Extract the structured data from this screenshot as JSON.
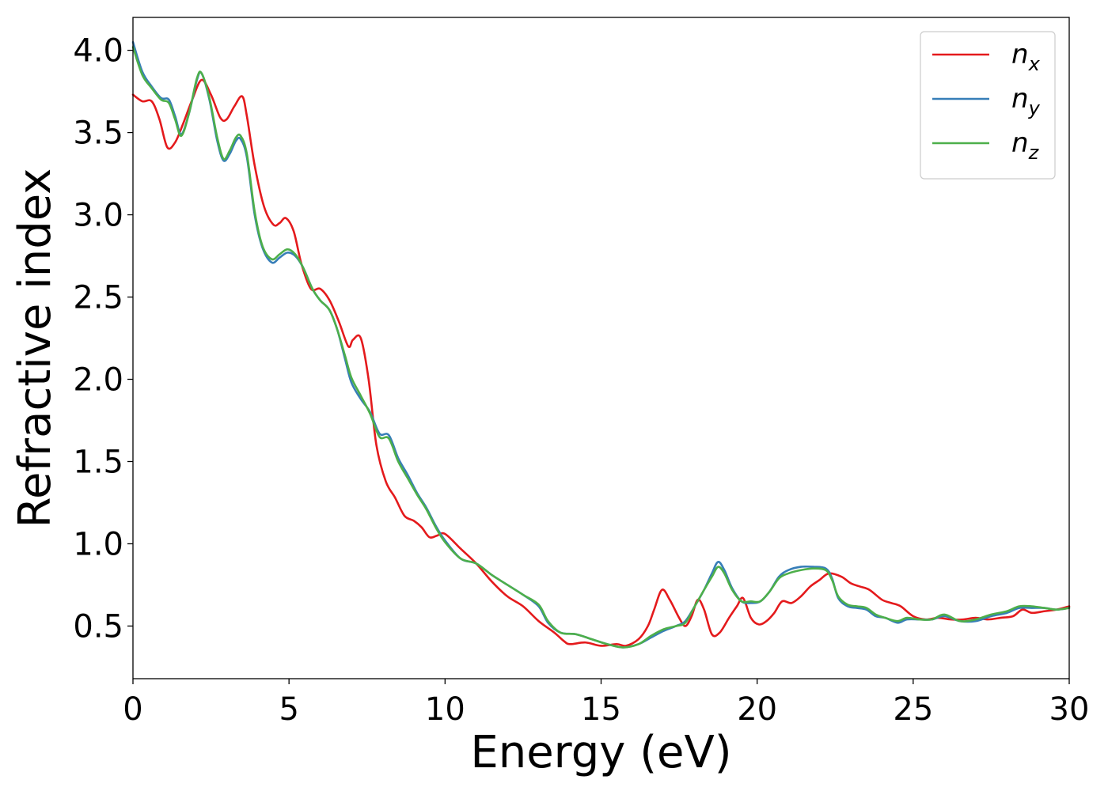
{
  "chart_data": {
    "type": "line",
    "title": "",
    "xlabel": "Energy (eV)",
    "ylabel": "Refractive index",
    "xlim": [
      0,
      30
    ],
    "ylim": [
      0.18,
      4.2
    ],
    "xticks": [
      0,
      5,
      10,
      15,
      20,
      25,
      30
    ],
    "xtick_labels": [
      "0",
      "5",
      "10",
      "15",
      "20",
      "25",
      "30"
    ],
    "yticks": [
      0.5,
      1.0,
      1.5,
      2.0,
      2.5,
      3.0,
      3.5,
      4.0
    ],
    "ytick_labels": [
      "0.5",
      "1.0",
      "1.5",
      "2.0",
      "2.5",
      "3.0",
      "3.5",
      "4.0"
    ],
    "grid": false,
    "legend_position": "top-right",
    "series": [
      {
        "name": "n_x",
        "legend_base": "n",
        "legend_sub": "x",
        "color": "#e41a1c",
        "points": [
          [
            0,
            3.73
          ],
          [
            0.3,
            3.69
          ],
          [
            0.6,
            3.69
          ],
          [
            0.85,
            3.58
          ],
          [
            1.1,
            3.41
          ],
          [
            1.35,
            3.44
          ],
          [
            1.6,
            3.55
          ],
          [
            1.9,
            3.7
          ],
          [
            2.2,
            3.82
          ],
          [
            2.5,
            3.73
          ],
          [
            2.8,
            3.59
          ],
          [
            3.0,
            3.58
          ],
          [
            3.25,
            3.66
          ],
          [
            3.5,
            3.72
          ],
          [
            3.65,
            3.6
          ],
          [
            3.9,
            3.3
          ],
          [
            4.2,
            3.05
          ],
          [
            4.5,
            2.94
          ],
          [
            4.7,
            2.95
          ],
          [
            4.9,
            2.98
          ],
          [
            5.15,
            2.9
          ],
          [
            5.4,
            2.7
          ],
          [
            5.7,
            2.55
          ],
          [
            6.0,
            2.55
          ],
          [
            6.3,
            2.48
          ],
          [
            6.6,
            2.35
          ],
          [
            6.9,
            2.2
          ],
          [
            7.05,
            2.24
          ],
          [
            7.3,
            2.25
          ],
          [
            7.55,
            2.0
          ],
          [
            7.8,
            1.6
          ],
          [
            8.1,
            1.38
          ],
          [
            8.4,
            1.28
          ],
          [
            8.7,
            1.17
          ],
          [
            9.0,
            1.14
          ],
          [
            9.25,
            1.1
          ],
          [
            9.5,
            1.04
          ],
          [
            9.75,
            1.05
          ],
          [
            10.0,
            1.06
          ],
          [
            10.5,
            0.97
          ],
          [
            11.0,
            0.88
          ],
          [
            11.5,
            0.77
          ],
          [
            12.0,
            0.68
          ],
          [
            12.5,
            0.62
          ],
          [
            13.0,
            0.53
          ],
          [
            13.5,
            0.46
          ],
          [
            13.8,
            0.41
          ],
          [
            14.0,
            0.39
          ],
          [
            14.5,
            0.4
          ],
          [
            15.0,
            0.38
          ],
          [
            15.5,
            0.39
          ],
          [
            15.8,
            0.38
          ],
          [
            16.2,
            0.42
          ],
          [
            16.5,
            0.5
          ],
          [
            16.7,
            0.6
          ],
          [
            16.95,
            0.72
          ],
          [
            17.2,
            0.66
          ],
          [
            17.5,
            0.55
          ],
          [
            17.7,
            0.5
          ],
          [
            17.9,
            0.56
          ],
          [
            18.1,
            0.66
          ],
          [
            18.3,
            0.6
          ],
          [
            18.55,
            0.45
          ],
          [
            18.8,
            0.46
          ],
          [
            19.1,
            0.55
          ],
          [
            19.35,
            0.62
          ],
          [
            19.55,
            0.67
          ],
          [
            19.8,
            0.55
          ],
          [
            20.05,
            0.51
          ],
          [
            20.3,
            0.53
          ],
          [
            20.55,
            0.58
          ],
          [
            20.8,
            0.65
          ],
          [
            21.1,
            0.64
          ],
          [
            21.4,
            0.68
          ],
          [
            21.7,
            0.74
          ],
          [
            22.0,
            0.78
          ],
          [
            22.3,
            0.82
          ],
          [
            22.7,
            0.8
          ],
          [
            23.0,
            0.76
          ],
          [
            23.3,
            0.74
          ],
          [
            23.6,
            0.72
          ],
          [
            24.0,
            0.66
          ],
          [
            24.3,
            0.64
          ],
          [
            24.6,
            0.62
          ],
          [
            25.0,
            0.56
          ],
          [
            25.4,
            0.54
          ],
          [
            25.8,
            0.55
          ],
          [
            26.2,
            0.54
          ],
          [
            26.6,
            0.54
          ],
          [
            27.0,
            0.55
          ],
          [
            27.4,
            0.54
          ],
          [
            27.8,
            0.55
          ],
          [
            28.2,
            0.56
          ],
          [
            28.5,
            0.6
          ],
          [
            28.8,
            0.58
          ],
          [
            29.2,
            0.59
          ],
          [
            29.6,
            0.6
          ],
          [
            30.0,
            0.62
          ]
        ]
      },
      {
        "name": "n_y",
        "legend_base": "n",
        "legend_sub": "y",
        "color": "#377eb8",
        "points": [
          [
            0,
            4.05
          ],
          [
            0.3,
            3.87
          ],
          [
            0.6,
            3.78
          ],
          [
            0.9,
            3.71
          ],
          [
            1.15,
            3.7
          ],
          [
            1.35,
            3.6
          ],
          [
            1.55,
            3.49
          ],
          [
            1.8,
            3.62
          ],
          [
            2.05,
            3.82
          ],
          [
            2.2,
            3.86
          ],
          [
            2.45,
            3.7
          ],
          [
            2.7,
            3.45
          ],
          [
            2.9,
            3.33
          ],
          [
            3.1,
            3.37
          ],
          [
            3.3,
            3.45
          ],
          [
            3.45,
            3.46
          ],
          [
            3.65,
            3.35
          ],
          [
            3.9,
            3.0
          ],
          [
            4.15,
            2.8
          ],
          [
            4.45,
            2.71
          ],
          [
            4.7,
            2.74
          ],
          [
            4.95,
            2.77
          ],
          [
            5.2,
            2.75
          ],
          [
            5.45,
            2.68
          ],
          [
            5.75,
            2.55
          ],
          [
            6.0,
            2.48
          ],
          [
            6.3,
            2.42
          ],
          [
            6.55,
            2.3
          ],
          [
            6.8,
            2.12
          ],
          [
            7.0,
            1.98
          ],
          [
            7.3,
            1.88
          ],
          [
            7.6,
            1.8
          ],
          [
            7.9,
            1.67
          ],
          [
            8.2,
            1.66
          ],
          [
            8.5,
            1.52
          ],
          [
            8.8,
            1.42
          ],
          [
            9.1,
            1.31
          ],
          [
            9.4,
            1.22
          ],
          [
            9.7,
            1.11
          ],
          [
            10.0,
            1.02
          ],
          [
            10.5,
            0.91
          ],
          [
            11.0,
            0.88
          ],
          [
            11.5,
            0.81
          ],
          [
            12.0,
            0.75
          ],
          [
            12.5,
            0.69
          ],
          [
            13.0,
            0.62
          ],
          [
            13.3,
            0.52
          ],
          [
            13.7,
            0.46
          ],
          [
            14.2,
            0.45
          ],
          [
            14.7,
            0.42
          ],
          [
            15.2,
            0.39
          ],
          [
            15.7,
            0.37
          ],
          [
            16.2,
            0.39
          ],
          [
            16.6,
            0.43
          ],
          [
            17.0,
            0.47
          ],
          [
            17.4,
            0.5
          ],
          [
            17.7,
            0.53
          ],
          [
            18.0,
            0.62
          ],
          [
            18.3,
            0.72
          ],
          [
            18.55,
            0.82
          ],
          [
            18.75,
            0.89
          ],
          [
            18.95,
            0.84
          ],
          [
            19.2,
            0.73
          ],
          [
            19.5,
            0.65
          ],
          [
            19.8,
            0.64
          ],
          [
            20.1,
            0.65
          ],
          [
            20.4,
            0.71
          ],
          [
            20.7,
            0.8
          ],
          [
            21.0,
            0.84
          ],
          [
            21.4,
            0.86
          ],
          [
            21.8,
            0.86
          ],
          [
            22.2,
            0.85
          ],
          [
            22.4,
            0.79
          ],
          [
            22.6,
            0.67
          ],
          [
            22.9,
            0.62
          ],
          [
            23.2,
            0.61
          ],
          [
            23.5,
            0.6
          ],
          [
            23.8,
            0.56
          ],
          [
            24.1,
            0.55
          ],
          [
            24.5,
            0.52
          ],
          [
            24.8,
            0.54
          ],
          [
            25.2,
            0.54
          ],
          [
            25.6,
            0.54
          ],
          [
            26.0,
            0.56
          ],
          [
            26.5,
            0.53
          ],
          [
            27.0,
            0.53
          ],
          [
            27.5,
            0.56
          ],
          [
            28.0,
            0.58
          ],
          [
            28.4,
            0.61
          ],
          [
            28.8,
            0.61
          ],
          [
            29.2,
            0.61
          ],
          [
            29.6,
            0.6
          ],
          [
            30.0,
            0.61
          ]
        ]
      },
      {
        "name": "n_z",
        "legend_base": "n",
        "legend_sub": "z",
        "color": "#4daf4a",
        "points": [
          [
            0,
            4.02
          ],
          [
            0.3,
            3.85
          ],
          [
            0.6,
            3.77
          ],
          [
            0.9,
            3.7
          ],
          [
            1.15,
            3.68
          ],
          [
            1.35,
            3.58
          ],
          [
            1.55,
            3.48
          ],
          [
            1.8,
            3.62
          ],
          [
            2.05,
            3.83
          ],
          [
            2.2,
            3.86
          ],
          [
            2.45,
            3.71
          ],
          [
            2.7,
            3.47
          ],
          [
            2.9,
            3.34
          ],
          [
            3.1,
            3.39
          ],
          [
            3.3,
            3.47
          ],
          [
            3.45,
            3.48
          ],
          [
            3.65,
            3.37
          ],
          [
            3.9,
            3.02
          ],
          [
            4.15,
            2.81
          ],
          [
            4.45,
            2.73
          ],
          [
            4.7,
            2.76
          ],
          [
            4.95,
            2.79
          ],
          [
            5.2,
            2.76
          ],
          [
            5.45,
            2.68
          ],
          [
            5.75,
            2.55
          ],
          [
            6.0,
            2.48
          ],
          [
            6.3,
            2.42
          ],
          [
            6.55,
            2.3
          ],
          [
            6.8,
            2.14
          ],
          [
            7.0,
            2.01
          ],
          [
            7.3,
            1.9
          ],
          [
            7.6,
            1.79
          ],
          [
            7.9,
            1.65
          ],
          [
            8.2,
            1.64
          ],
          [
            8.5,
            1.5
          ],
          [
            8.8,
            1.4
          ],
          [
            9.1,
            1.3
          ],
          [
            9.4,
            1.21
          ],
          [
            9.7,
            1.1
          ],
          [
            10.0,
            1.01
          ],
          [
            10.5,
            0.91
          ],
          [
            11.0,
            0.88
          ],
          [
            11.5,
            0.81
          ],
          [
            12.0,
            0.75
          ],
          [
            12.5,
            0.69
          ],
          [
            13.0,
            0.63
          ],
          [
            13.3,
            0.53
          ],
          [
            13.7,
            0.46
          ],
          [
            14.2,
            0.45
          ],
          [
            14.7,
            0.42
          ],
          [
            15.2,
            0.39
          ],
          [
            15.7,
            0.37
          ],
          [
            16.2,
            0.39
          ],
          [
            16.6,
            0.44
          ],
          [
            17.0,
            0.48
          ],
          [
            17.4,
            0.5
          ],
          [
            17.7,
            0.52
          ],
          [
            18.0,
            0.62
          ],
          [
            18.3,
            0.72
          ],
          [
            18.55,
            0.8
          ],
          [
            18.75,
            0.86
          ],
          [
            18.95,
            0.82
          ],
          [
            19.2,
            0.72
          ],
          [
            19.5,
            0.65
          ],
          [
            19.8,
            0.65
          ],
          [
            20.1,
            0.65
          ],
          [
            20.4,
            0.71
          ],
          [
            20.7,
            0.79
          ],
          [
            21.0,
            0.82
          ],
          [
            21.4,
            0.84
          ],
          [
            21.8,
            0.85
          ],
          [
            22.2,
            0.84
          ],
          [
            22.4,
            0.78
          ],
          [
            22.6,
            0.68
          ],
          [
            22.9,
            0.63
          ],
          [
            23.2,
            0.62
          ],
          [
            23.5,
            0.61
          ],
          [
            23.8,
            0.57
          ],
          [
            24.1,
            0.55
          ],
          [
            24.5,
            0.53
          ],
          [
            24.8,
            0.55
          ],
          [
            25.2,
            0.54
          ],
          [
            25.6,
            0.54
          ],
          [
            26.0,
            0.57
          ],
          [
            26.5,
            0.53
          ],
          [
            27.0,
            0.54
          ],
          [
            27.5,
            0.57
          ],
          [
            28.0,
            0.59
          ],
          [
            28.4,
            0.62
          ],
          [
            28.8,
            0.62
          ],
          [
            29.2,
            0.61
          ],
          [
            29.6,
            0.6
          ],
          [
            30.0,
            0.61
          ]
        ]
      }
    ]
  }
}
